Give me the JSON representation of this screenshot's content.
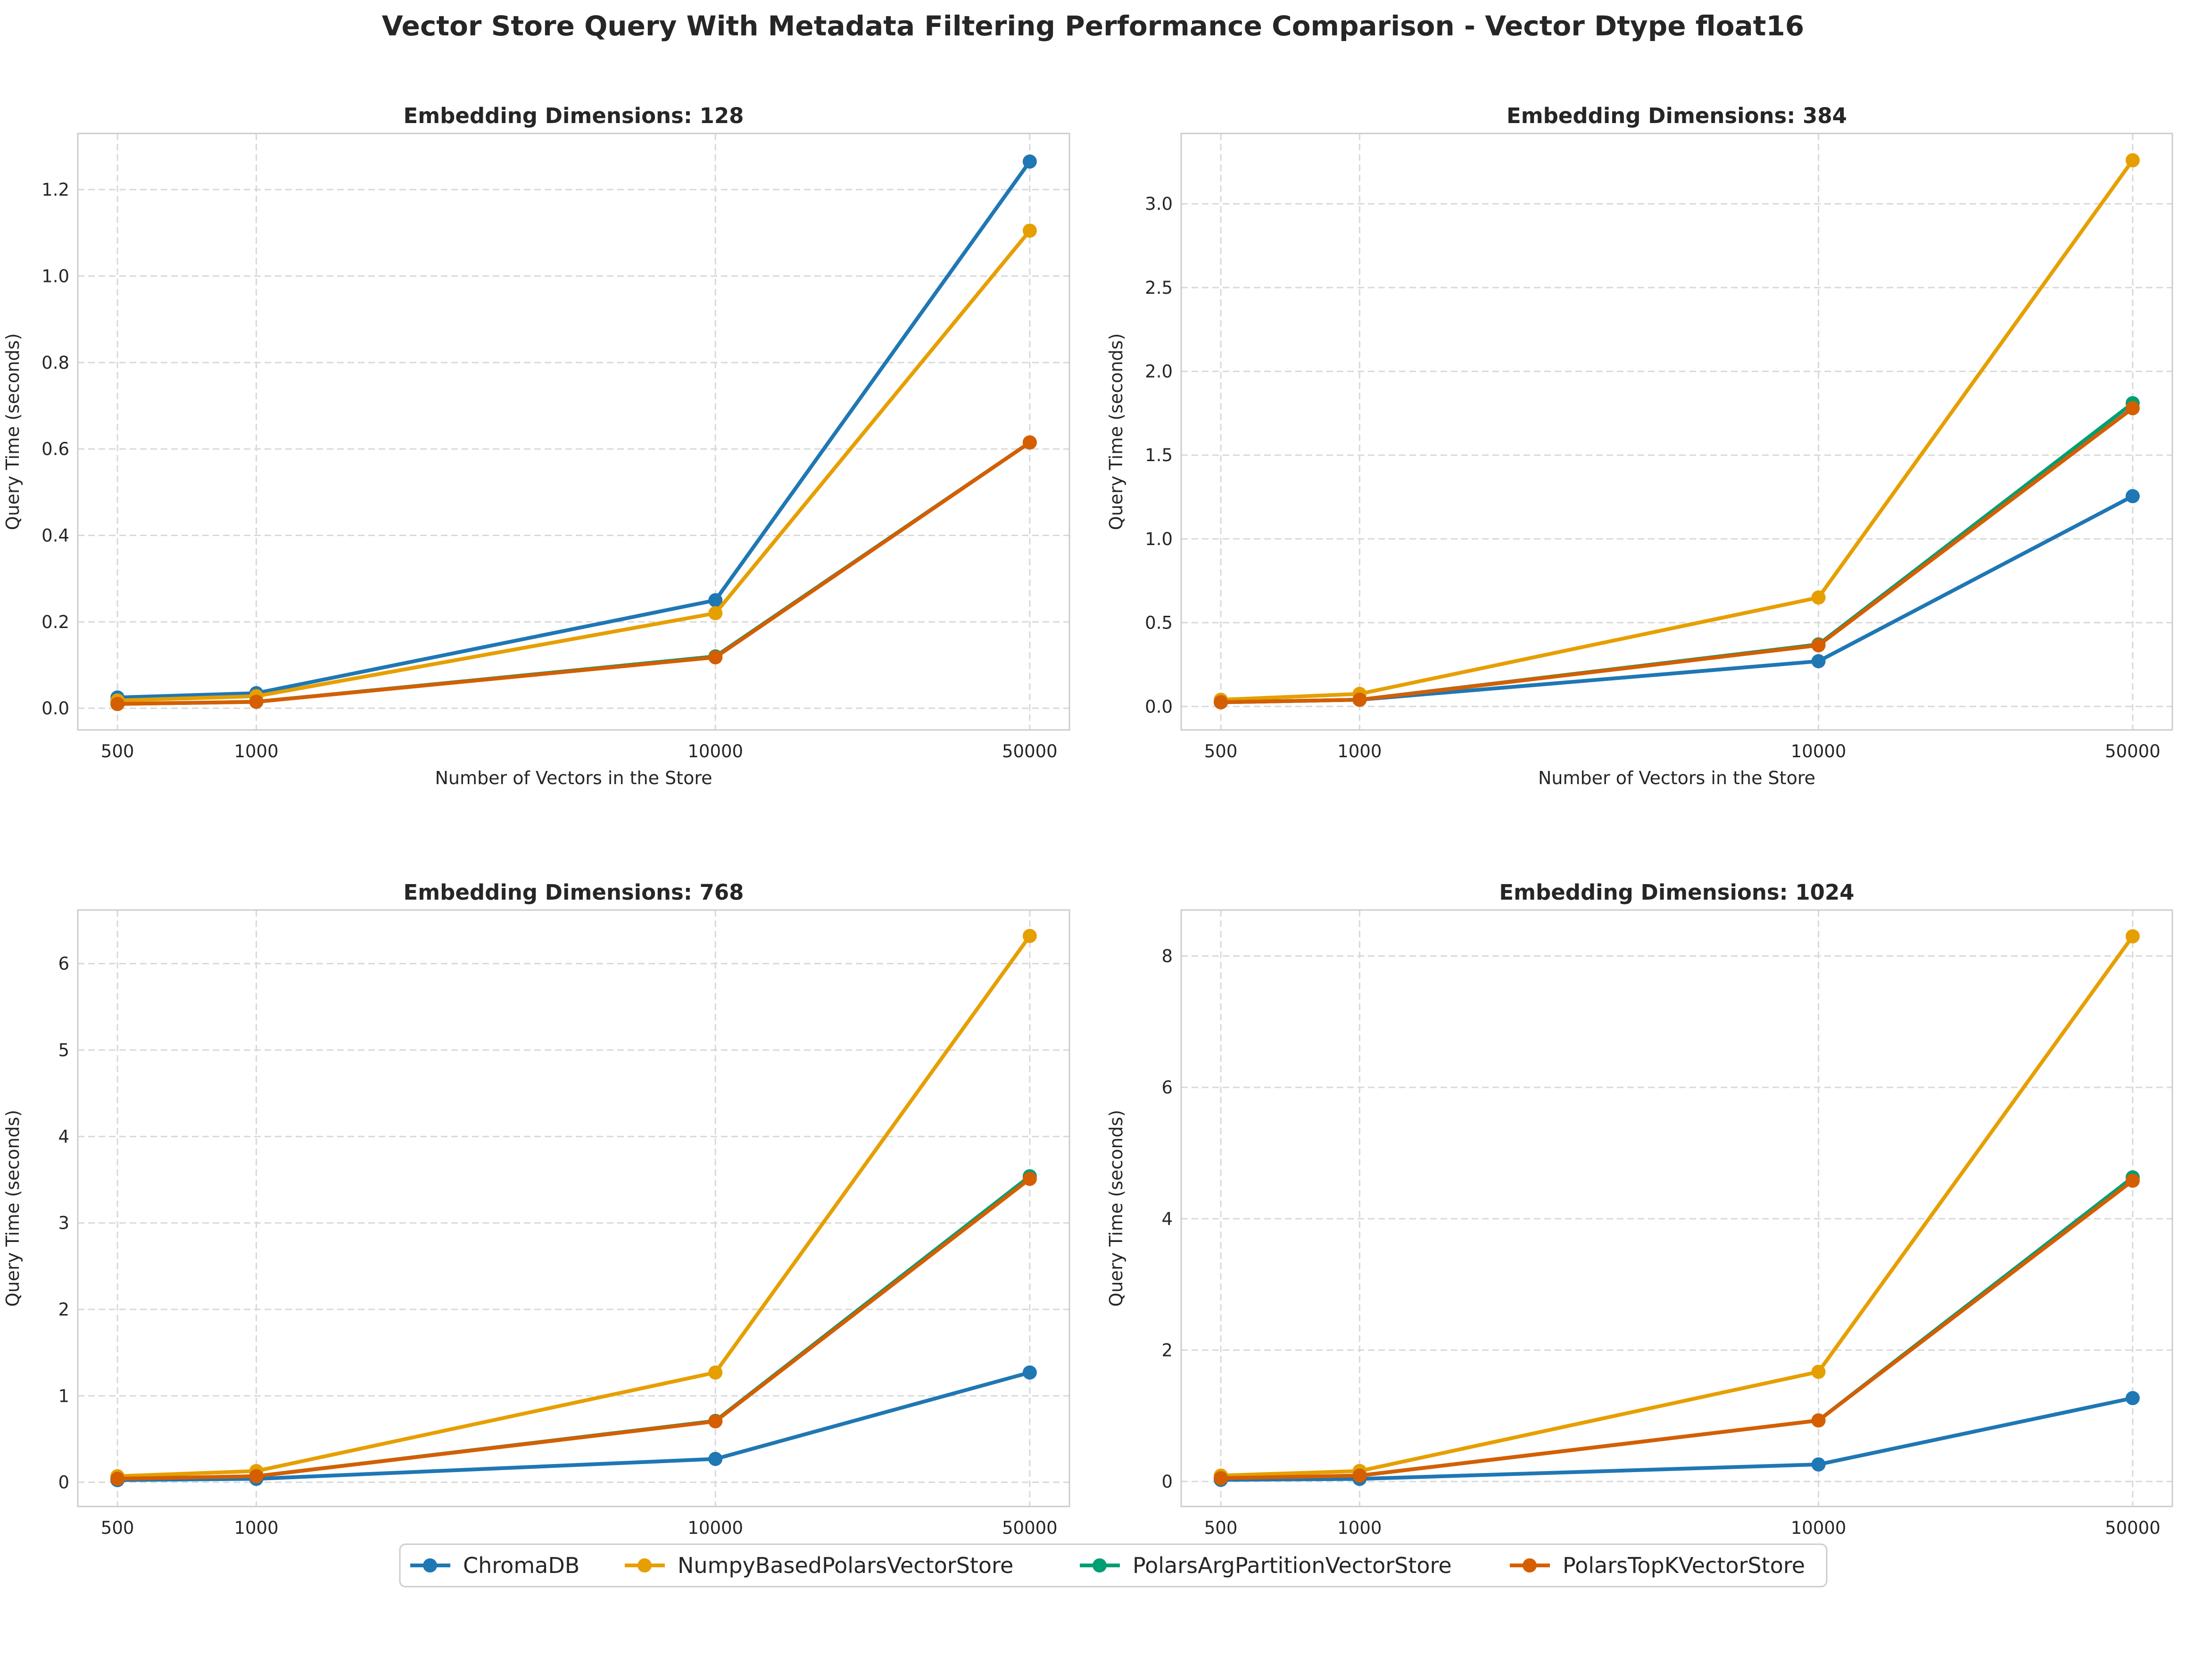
{
  "figure": {
    "title": "Vector Store Query With Metadata Filtering Performance Comparison - Vector Dtype float16"
  },
  "legend": {
    "position": "bottom-center",
    "entries": [
      {
        "name": "ChromaDB",
        "color": "#1f77b4"
      },
      {
        "name": "NumpyBasedPolarsVectorStore",
        "color": "#e69f00"
      },
      {
        "name": "PolarsArgPartitionVectorStore",
        "color": "#009e73"
      },
      {
        "name": "PolarsTopKVectorStore",
        "color": "#d55e00"
      }
    ]
  },
  "chart_data": [
    {
      "type": "line",
      "title": "Embedding Dimensions: 128",
      "xlabel": "Number of Vectors in the Store",
      "ylabel": "Query Time (seconds)",
      "x": [
        500,
        1000,
        10000,
        50000
      ],
      "xticklabels": [
        "500",
        "1000",
        "10000",
        "50000"
      ],
      "ylim": [
        -0.05,
        1.33
      ],
      "yticks": [
        0.0,
        0.2,
        0.4,
        0.6,
        0.8,
        1.0,
        1.2
      ],
      "yticklabels": [
        "0.0",
        "0.2",
        "0.4",
        "0.6",
        "0.8",
        "1.0",
        "1.2"
      ],
      "grid": true,
      "series": [
        {
          "name": "ChromaDB",
          "values": [
            0.025,
            0.035,
            0.25,
            1.265
          ]
        },
        {
          "name": "NumpyBasedPolarsVectorStore",
          "values": [
            0.018,
            0.028,
            0.22,
            1.105
          ]
        },
        {
          "name": "PolarsArgPartitionVectorStore",
          "values": [
            0.01,
            0.015,
            0.12,
            0.615
          ]
        },
        {
          "name": "PolarsTopKVectorStore",
          "values": [
            0.01,
            0.015,
            0.118,
            0.615
          ]
        }
      ]
    },
    {
      "type": "line",
      "title": "Embedding Dimensions: 384",
      "xlabel": "Number of Vectors in the Store",
      "ylabel": "Query Time (seconds)",
      "x": [
        500,
        1000,
        10000,
        50000
      ],
      "xticklabels": [
        "500",
        "1000",
        "10000",
        "50000"
      ],
      "ylim": [
        -0.14,
        3.42
      ],
      "yticks": [
        0.0,
        0.5,
        1.0,
        1.5,
        2.0,
        2.5,
        3.0
      ],
      "yticklabels": [
        "0.0",
        "0.5",
        "1.0",
        "1.5",
        "2.0",
        "2.5",
        "3.0"
      ],
      "grid": true,
      "series": [
        {
          "name": "ChromaDB",
          "values": [
            0.025,
            0.04,
            0.27,
            1.255
          ]
        },
        {
          "name": "NumpyBasedPolarsVectorStore",
          "values": [
            0.04,
            0.075,
            0.65,
            3.26
          ]
        },
        {
          "name": "PolarsArgPartitionVectorStore",
          "values": [
            0.025,
            0.04,
            0.37,
            1.81
          ]
        },
        {
          "name": "PolarsTopKVectorStore",
          "values": [
            0.025,
            0.04,
            0.365,
            1.78
          ]
        }
      ]
    },
    {
      "type": "line",
      "title": "Embedding Dimensions: 768",
      "xlabel": "Number of Vectors in the Store",
      "ylabel": "Query Time (seconds)",
      "x": [
        500,
        1000,
        10000,
        50000
      ],
      "xticklabels": [
        "500",
        "1000",
        "10000",
        "50000"
      ],
      "ylim": [
        -0.28,
        6.62
      ],
      "yticks": [
        0,
        1,
        2,
        3,
        4,
        5,
        6
      ],
      "yticklabels": [
        "0",
        "1",
        "2",
        "3",
        "4",
        "5",
        "6"
      ],
      "grid": true,
      "series": [
        {
          "name": "ChromaDB",
          "values": [
            0.025,
            0.04,
            0.27,
            1.27
          ]
        },
        {
          "name": "NumpyBasedPolarsVectorStore",
          "values": [
            0.07,
            0.13,
            1.27,
            6.32
          ]
        },
        {
          "name": "PolarsArgPartitionVectorStore",
          "values": [
            0.04,
            0.07,
            0.71,
            3.54
          ]
        },
        {
          "name": "PolarsTopKVectorStore",
          "values": [
            0.04,
            0.07,
            0.705,
            3.51
          ]
        }
      ]
    },
    {
      "type": "line",
      "title": "Embedding Dimensions: 1024",
      "xlabel": "Number of Vectors in the Store",
      "ylabel": "Query Time (seconds)",
      "x": [
        500,
        1000,
        10000,
        50000
      ],
      "xticklabels": [
        "500",
        "1000",
        "10000",
        "50000"
      ],
      "ylim": [
        -0.38,
        8.7
      ],
      "yticks": [
        0,
        2,
        4,
        6,
        8
      ],
      "yticklabels": [
        "0",
        "2",
        "4",
        "6",
        "8"
      ],
      "grid": true,
      "series": [
        {
          "name": "ChromaDB",
          "values": [
            0.025,
            0.04,
            0.26,
            1.27
          ]
        },
        {
          "name": "NumpyBasedPolarsVectorStore",
          "values": [
            0.09,
            0.16,
            1.67,
            8.3
          ]
        },
        {
          "name": "PolarsArgPartitionVectorStore",
          "values": [
            0.05,
            0.09,
            0.93,
            4.63
          ]
        },
        {
          "name": "PolarsTopKVectorStore",
          "values": [
            0.05,
            0.09,
            0.93,
            4.58
          ]
        }
      ]
    }
  ]
}
